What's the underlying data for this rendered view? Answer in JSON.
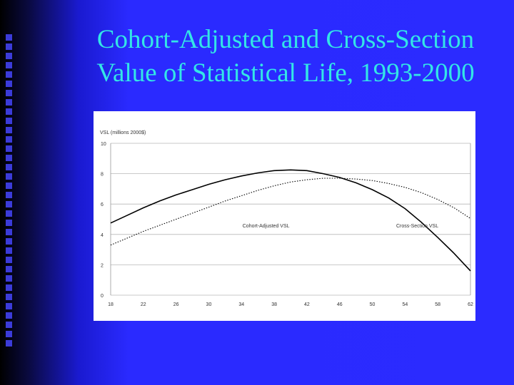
{
  "slide": {
    "title_line1": "Cohort-Adjusted and Cross-Section",
    "title_line2": "Value of Statistical Life, 1993-2000",
    "title_color": "#33e6e6",
    "background_color": "#2b2bff"
  },
  "chart_data": {
    "type": "line",
    "title": "",
    "ylabel": "VSL (millions 2000$)",
    "xlabel": "",
    "xlim": [
      18,
      62
    ],
    "ylim": [
      0,
      10
    ],
    "x_ticks": [
      18,
      22,
      26,
      30,
      34,
      38,
      42,
      46,
      50,
      54,
      58,
      62
    ],
    "y_ticks": [
      0,
      2,
      4,
      6,
      8,
      10
    ],
    "grid": "horizontal",
    "series": [
      {
        "name": "Cohort-Adjusted VSL",
        "style": "solid",
        "x": [
          18,
          20,
          22,
          24,
          26,
          28,
          30,
          32,
          34,
          36,
          38,
          40,
          42,
          44,
          46,
          48,
          50,
          52,
          54,
          56,
          58,
          60,
          62
        ],
        "values": [
          4.75,
          5.25,
          5.75,
          6.2,
          6.6,
          6.95,
          7.3,
          7.6,
          7.85,
          8.05,
          8.2,
          8.25,
          8.2,
          8.0,
          7.75,
          7.4,
          6.95,
          6.4,
          5.7,
          4.8,
          3.8,
          2.75,
          1.6
        ]
      },
      {
        "name": "Cross-Section VSL",
        "style": "dotted",
        "x": [
          18,
          20,
          22,
          24,
          26,
          28,
          30,
          32,
          34,
          36,
          38,
          40,
          42,
          44,
          46,
          48,
          50,
          52,
          54,
          56,
          58,
          60,
          62
        ],
        "values": [
          3.3,
          3.75,
          4.2,
          4.6,
          5.0,
          5.4,
          5.8,
          6.2,
          6.55,
          6.9,
          7.2,
          7.45,
          7.6,
          7.7,
          7.7,
          7.65,
          7.55,
          7.35,
          7.1,
          6.75,
          6.3,
          5.75,
          5.05
        ]
      }
    ],
    "annotations": [
      {
        "text": "Cohort-Adjusted VSL",
        "x": 37,
        "y": 4.6
      },
      {
        "text": "Cross-Section VSL",
        "x": 55.5,
        "y": 4.6
      }
    ]
  }
}
